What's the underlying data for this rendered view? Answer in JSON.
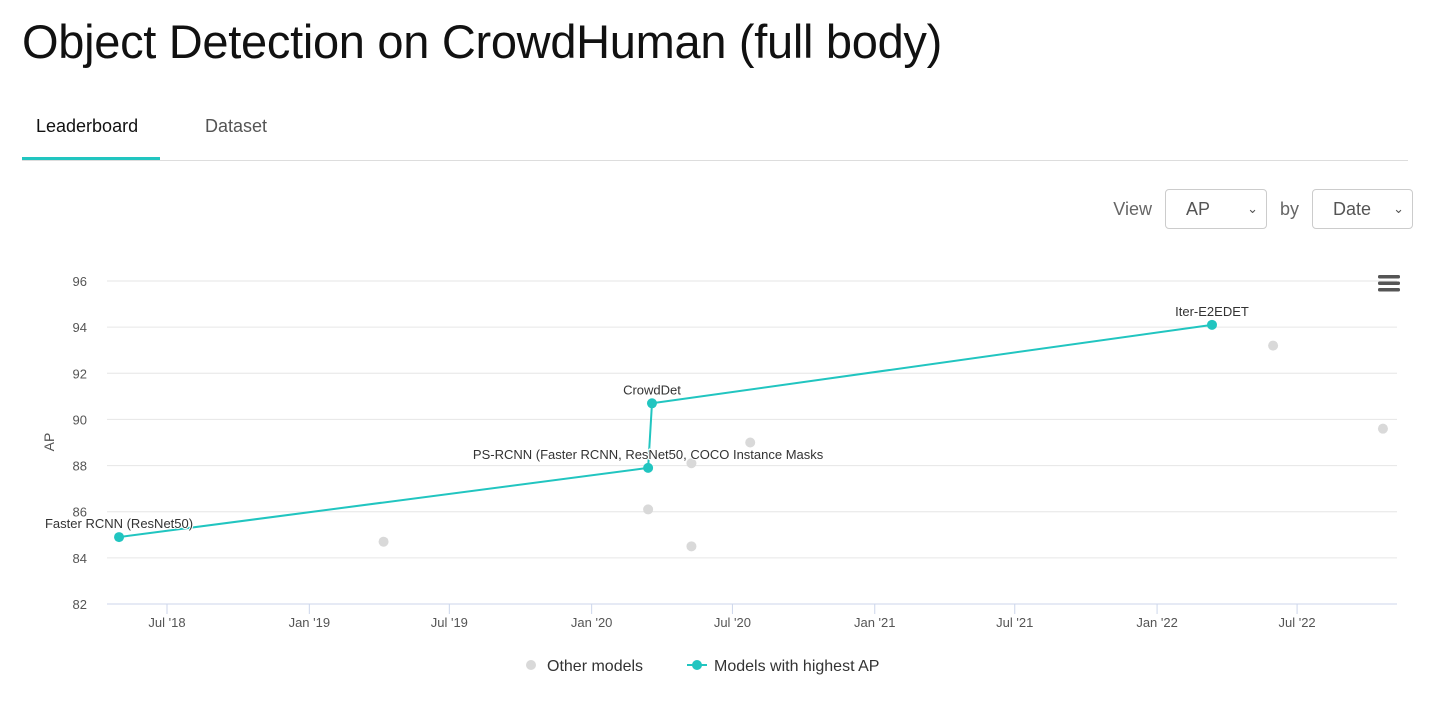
{
  "title": "Object Detection on CrowdHuman (full body)",
  "tabs": [
    {
      "label": "Leaderboard",
      "active": true
    },
    {
      "label": "Dataset",
      "active": false
    }
  ],
  "controls": {
    "view_label": "View",
    "view_value": "AP",
    "by_label": "by",
    "by_value": "Date"
  },
  "menu_icon": "hamburger-menu-icon",
  "colors": {
    "accent": "#21c5c0",
    "other": "#d9d9d9"
  },
  "chart_data": {
    "type": "scatter",
    "ylabel": "AP",
    "xlabel": "",
    "ylim": [
      82,
      96
    ],
    "yticks": [
      82,
      84,
      86,
      88,
      90,
      92,
      94,
      96
    ],
    "xticks": [
      {
        "date": "2018-07-01",
        "label": "Jul '18"
      },
      {
        "date": "2019-01-01",
        "label": "Jan '19"
      },
      {
        "date": "2019-07-01",
        "label": "Jul '19"
      },
      {
        "date": "2020-01-01",
        "label": "Jan '20"
      },
      {
        "date": "2020-07-01",
        "label": "Jul '20"
      },
      {
        "date": "2021-01-01",
        "label": "Jan '21"
      },
      {
        "date": "2021-07-01",
        "label": "Jul '21"
      },
      {
        "date": "2022-01-01",
        "label": "Jan '22"
      },
      {
        "date": "2022-07-01",
        "label": "Jul '22"
      }
    ],
    "grid": true,
    "legend_position": "bottom",
    "series": [
      {
        "name": "Other models",
        "color": "#d9d9d9",
        "points": [
          {
            "date": "2019-04-07",
            "y": 84.7
          },
          {
            "date": "2020-03-14",
            "y": 86.1
          },
          {
            "date": "2020-05-09",
            "y": 88.1
          },
          {
            "date": "2020-05-09",
            "y": 84.5
          },
          {
            "date": "2020-07-24",
            "y": 89.0
          },
          {
            "date": "2022-05-31",
            "y": 93.2
          },
          {
            "date": "2022-10-20",
            "y": 89.6
          }
        ]
      },
      {
        "name": "Models with highest AP",
        "color": "#21c5c0",
        "points": [
          {
            "date": "2018-04-30",
            "y": 84.9,
            "label": "Faster RCNN (ResNet50)"
          },
          {
            "date": "2020-03-14",
            "y": 87.9,
            "label": "PS-RCNN (Faster RCNN, ResNet50, COCO Instance Masks"
          },
          {
            "date": "2020-03-19",
            "y": 90.7,
            "label": "CrowdDet"
          },
          {
            "date": "2022-03-13",
            "y": 94.1,
            "label": "Iter-E2EDET"
          }
        ]
      }
    ]
  }
}
